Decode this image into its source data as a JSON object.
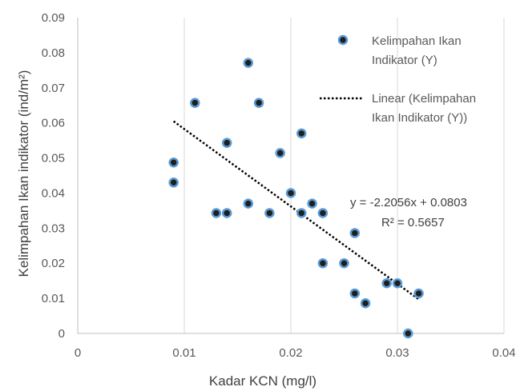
{
  "chart_data": {
    "type": "scatter",
    "xlabel": "Kadar KCN (mg/l)",
    "ylabel": "Kelimpahan Ikan indikator (ind/m²)",
    "xlim": [
      0,
      0.04
    ],
    "ylim": [
      0,
      0.09
    ],
    "xticks": [
      "0",
      "0.01",
      "0.02",
      "0.03",
      "0.04"
    ],
    "yticks": [
      "0",
      "0.01",
      "0.02",
      "0.03",
      "0.04",
      "0.05",
      "0.06",
      "0.07",
      "0.08",
      "0.09"
    ],
    "grid": "vertical",
    "legend_position": "right",
    "series": [
      {
        "name": "Kelimpahan Ikan Indikator (Y)",
        "marker_color": "#1f1f1f",
        "marker_edge": "#5b9bd5",
        "points": [
          {
            "x": 0.009,
            "y": 0.0487
          },
          {
            "x": 0.009,
            "y": 0.043
          },
          {
            "x": 0.011,
            "y": 0.0657
          },
          {
            "x": 0.013,
            "y": 0.0343
          },
          {
            "x": 0.014,
            "y": 0.0543
          },
          {
            "x": 0.014,
            "y": 0.0343
          },
          {
            "x": 0.016,
            "y": 0.0771
          },
          {
            "x": 0.016,
            "y": 0.037
          },
          {
            "x": 0.017,
            "y": 0.0657
          },
          {
            "x": 0.018,
            "y": 0.0343
          },
          {
            "x": 0.019,
            "y": 0.0514
          },
          {
            "x": 0.02,
            "y": 0.04
          },
          {
            "x": 0.021,
            "y": 0.057
          },
          {
            "x": 0.021,
            "y": 0.0343
          },
          {
            "x": 0.022,
            "y": 0.037
          },
          {
            "x": 0.023,
            "y": 0.0343
          },
          {
            "x": 0.023,
            "y": 0.02
          },
          {
            "x": 0.025,
            "y": 0.02
          },
          {
            "x": 0.026,
            "y": 0.0286
          },
          {
            "x": 0.026,
            "y": 0.0114
          },
          {
            "x": 0.027,
            "y": 0.0086
          },
          {
            "x": 0.029,
            "y": 0.0143
          },
          {
            "x": 0.03,
            "y": 0.0143
          },
          {
            "x": 0.031,
            "y": 0.0
          },
          {
            "x": 0.032,
            "y": 0.0114
          }
        ]
      }
    ],
    "trendline": {
      "name": "Linear (Kelimpahan Ikan Indikator (Y))",
      "slope": -2.2056,
      "intercept": 0.0803,
      "x_range": [
        0.009,
        0.032
      ],
      "color": "#000000",
      "equation": "y = -2.2056x + 0.0803",
      "r_squared": "R² = 0.5657"
    },
    "legend": {
      "scatter_lines": [
        "Kelimpahan Ikan",
        "Indikator (Y)"
      ],
      "trend_lines": [
        "Linear (Kelimpahan",
        "Ikan Indikator (Y))"
      ]
    }
  }
}
